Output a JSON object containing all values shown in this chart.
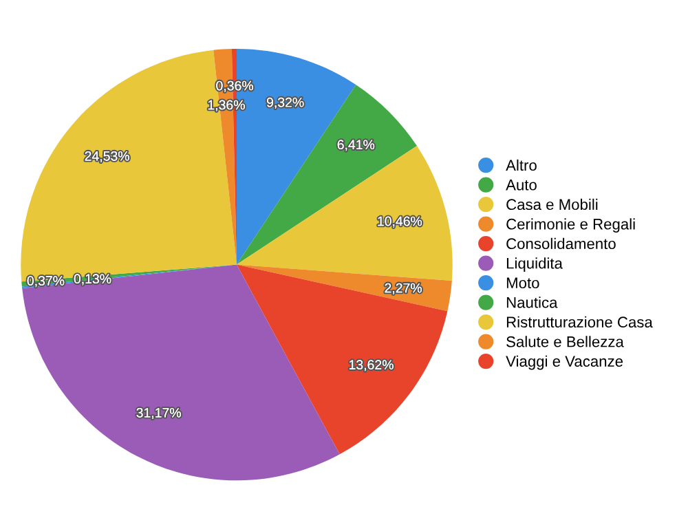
{
  "chart_data": {
    "type": "pie",
    "categories": [
      "Altro",
      "Auto",
      "Casa e Mobili",
      "Cerimonie e Regali",
      "Consolidamento",
      "Liquidita",
      "Moto",
      "Nautica",
      "Ristrutturazione Casa",
      "Salute e Bellezza",
      "Viaggi e Vacanze"
    ],
    "values": [
      9.32,
      6.41,
      10.46,
      2.27,
      13.62,
      31.17,
      0.13,
      0.37,
      24.53,
      1.36,
      0.36
    ],
    "value_labels": [
      "9,32%",
      "6,41%",
      "10,46%",
      "2,27%",
      "13,62%",
      "31,17%",
      "0,13%",
      "0,37%",
      "24,53%",
      "1,36%",
      "0,36%"
    ],
    "colors": [
      "#3a8fe3",
      "#43a846",
      "#e8c83a",
      "#ee8a2c",
      "#e8432b",
      "#9b5cb8",
      "#3a8fe3",
      "#43a846",
      "#e8c83a",
      "#ee8a2c",
      "#e8432b"
    ],
    "legend": "right"
  }
}
